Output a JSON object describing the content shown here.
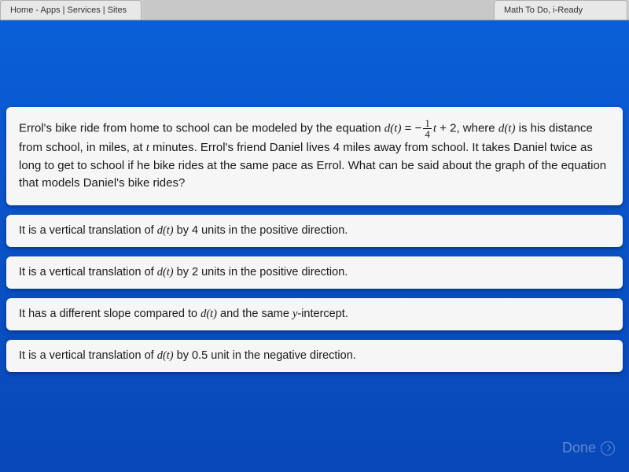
{
  "tabs": {
    "left_label": "Home - Apps | Services | Sites",
    "right_label": "Math To Do, i-Ready"
  },
  "question": {
    "pre1": "Errol's bike ride from home to school can be modeled by the equation ",
    "eq_func": "d(t)",
    "eq_eqsign": " = ",
    "eq_neg": "−",
    "eq_frac_num": "1",
    "eq_frac_den": "4",
    "eq_var": "t",
    "eq_plus": " + 2",
    "post1": ", where ",
    "dt2": "d(t)",
    "post2": " is his distance from school, in miles, at ",
    "tvar": "t",
    "post3": " minutes. Errol's friend Daniel lives ",
    "four": "4",
    "post4": " miles away from school. It takes Daniel twice as long to get to school if he bike rides at the same pace as Errol. What can be said about the graph of the equation that models Daniel's bike rides?"
  },
  "answers": [
    {
      "pre": "It is a vertical translation of ",
      "fn": "d(t)",
      "mid": " by ",
      "val": "4",
      "post": " units in the positive direction."
    },
    {
      "pre": "It is a vertical translation of ",
      "fn": "d(t)",
      "mid": " by ",
      "val": "2",
      "post": " units in the positive direction."
    },
    {
      "pre": "It has a different slope compared to ",
      "fn": "d(t)",
      "mid": " and the same ",
      "val": "y",
      "post": "-intercept."
    },
    {
      "pre": "It is a vertical translation of ",
      "fn": "d(t)",
      "mid": " by ",
      "val": "0.5",
      "post": " unit in the negative direction."
    }
  ],
  "done_label": "Done",
  "colors": {
    "page_bg_top": "#0a5fd8",
    "page_bg_bottom": "#0848b8",
    "card_bg": "#f6f6f6",
    "tab_bg": "#e8e8e8",
    "tabstrip_bg": "#d0d0d0",
    "text": "#1a1a1a",
    "done_disabled": "rgba(255,255,255,.35)"
  }
}
